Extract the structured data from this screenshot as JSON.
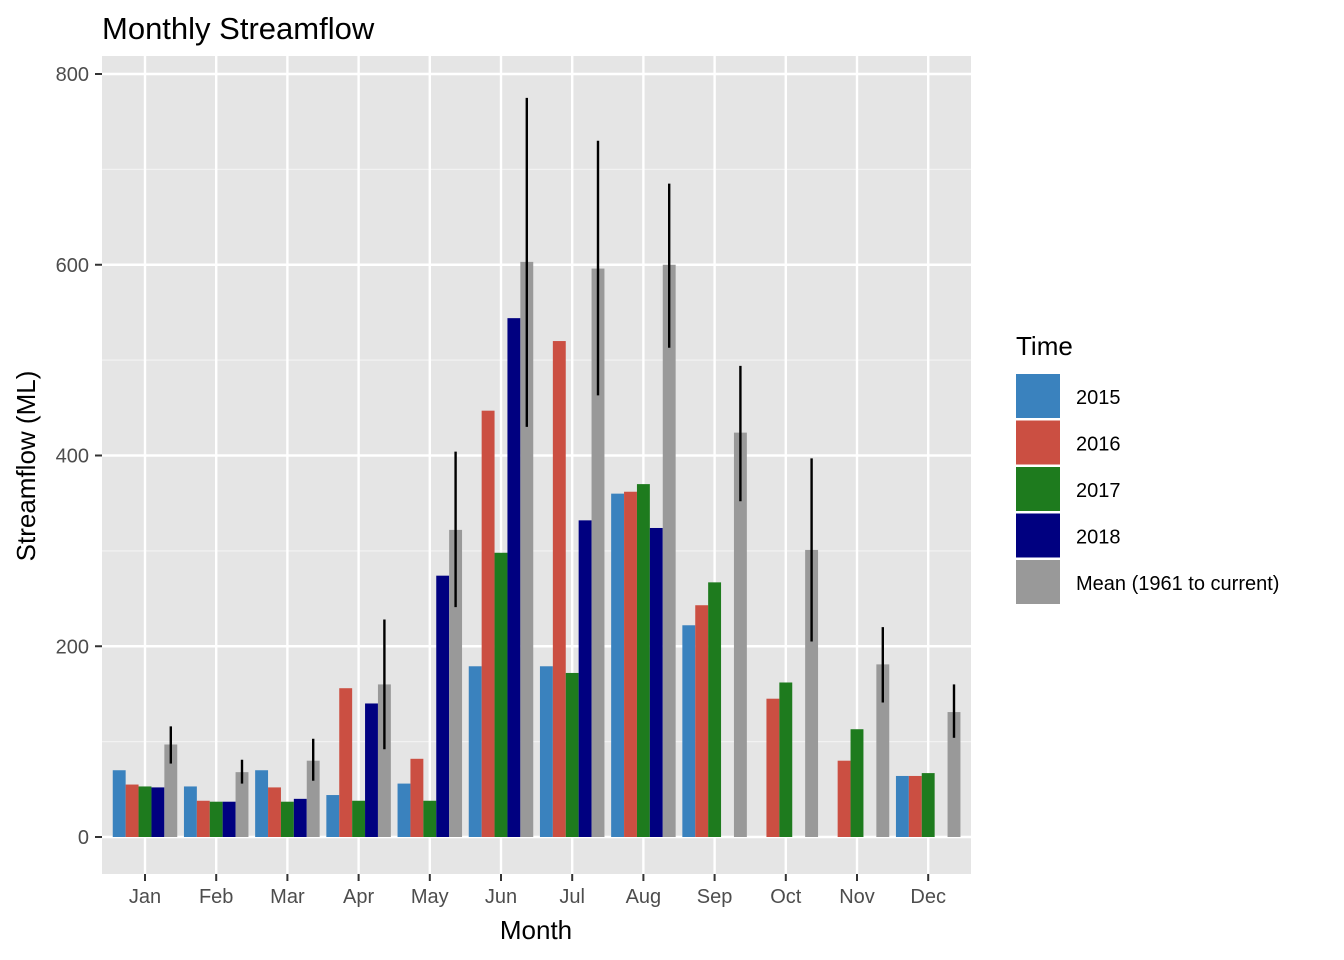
{
  "chart_data": {
    "type": "bar",
    "title": "Monthly Streamflow",
    "xlabel": "Month",
    "ylabel": "Streamflow (ML)",
    "ylim": [
      -40,
      800
    ],
    "yticks": [
      0,
      200,
      400,
      600,
      800
    ],
    "grid": true,
    "legend": {
      "title": "Time",
      "placement": "right"
    },
    "categories": [
      "Jan",
      "Feb",
      "Mar",
      "Apr",
      "May",
      "Jun",
      "Jul",
      "Aug",
      "Sep",
      "Oct",
      "Nov",
      "Dec"
    ],
    "series": [
      {
        "name": "2015",
        "color": "#3A82BE",
        "values": [
          70,
          53,
          70,
          44,
          56,
          179,
          179,
          360,
          222,
          null,
          null,
          64
        ]
      },
      {
        "name": "2016",
        "color": "#CB4F42",
        "values": [
          55,
          38,
          52,
          156,
          82,
          447,
          520,
          362,
          243,
          145,
          80,
          64
        ]
      },
      {
        "name": "2017",
        "color": "#1E7B1E",
        "values": [
          53,
          37,
          37,
          38,
          38,
          298,
          172,
          370,
          267,
          162,
          113,
          67
        ]
      },
      {
        "name": "2018",
        "color": "#000080",
        "values": [
          52,
          37,
          40,
          140,
          274,
          544,
          332,
          324,
          null,
          null,
          null,
          null
        ]
      },
      {
        "name": "Mean (1961 to current)",
        "color": "#999999",
        "values": [
          97,
          68,
          80,
          160,
          322,
          603,
          596,
          600,
          424,
          301,
          181,
          131
        ],
        "error_low": [
          77,
          56,
          59,
          92,
          241,
          430,
          463,
          513,
          352,
          205,
          141,
          104
        ],
        "error_high": [
          116,
          81,
          103,
          228,
          404,
          775,
          730,
          685,
          494,
          397,
          220,
          160
        ]
      }
    ]
  }
}
